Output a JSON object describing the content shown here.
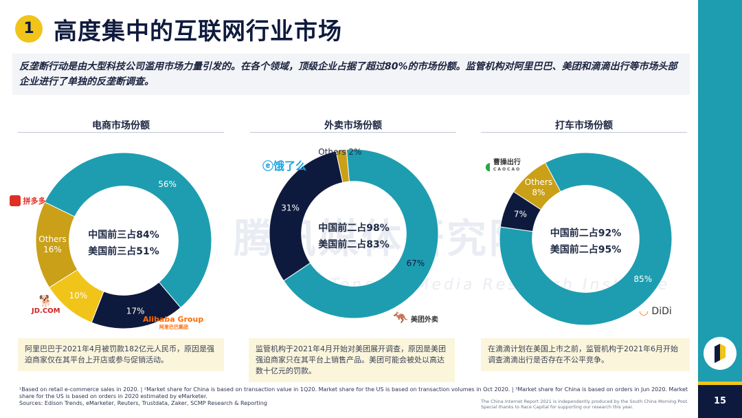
{
  "header": {
    "badge": "1",
    "title": "高度集中的互联网行业市场"
  },
  "intro": "反垄断行动是由大型科技公司滥用市场力量引发的。在各个领域，顶级企业占据了超过80%的市场份额。监管机构对阿里巴巴、美团和滴滴出行等市场头部企业进行了单独的反垄断调查。",
  "watermark": {
    "cn": "腾讯媒体研究院",
    "en": "Tencent Media Research Institute"
  },
  "colors": {
    "teal": "#1e9db0",
    "navy": "#0e1a3d",
    "gold": "#f0c419",
    "olive": "#c9a018"
  },
  "charts": [
    {
      "heading": "电商市场份额",
      "center": [
        "中国前三占84%",
        "美国前三占51%"
      ],
      "logos": {
        "top": "拼多多",
        "bottom_left": "JD.COM",
        "bottom_right": "Alibaba Group",
        "bottom_right_sub": "阿里巴巴集团"
      },
      "note": "阿里巴巴于2021年4月被罚款182亿元人民币，原因是强迫商家仅在其平台上开店或参与促销活动。"
    },
    {
      "heading": "外卖市场份额",
      "center": [
        "中国前二占98%",
        "美国前二占83%"
      ],
      "logos": {
        "top": "饿了么",
        "bottom_right": "美团外卖"
      },
      "note": "监管机构于2021年4月开始对美团展开调查，原因是美团强迫商家只在其平台上销售产品。美团可能会被处以高达数十亿元的罚款。"
    },
    {
      "heading": "打车市场份额",
      "center": [
        "中国前二占92%",
        "美国前二占95%"
      ],
      "logos": {
        "top": "曹操出行",
        "top_sub": "CAOCAO",
        "bottom_right": "DiDi"
      },
      "note": "在滴滴计划在美国上市之前，监管机构于2021年6月开始调查滴滴出行是否存在不公平竞争。"
    }
  ],
  "chart_data": [
    {
      "type": "pie",
      "title": "电商市场份额",
      "series": [
        {
          "name": "Alibaba",
          "value": 56,
          "label": "56%"
        },
        {
          "name": "JD.COM",
          "value": 17,
          "label": "17%"
        },
        {
          "name": "拼多多",
          "value": 10,
          "label": "10%"
        },
        {
          "name": "Others",
          "value": 16,
          "label": "Others\n16%"
        }
      ]
    },
    {
      "type": "pie",
      "title": "外卖市场份额",
      "series": [
        {
          "name": "美团外卖",
          "value": 67,
          "label": "67%"
        },
        {
          "name": "饿了么",
          "value": 31,
          "label": "31%"
        },
        {
          "name": "Others",
          "value": 2,
          "label": "Others 2%"
        }
      ]
    },
    {
      "type": "pie",
      "title": "打车市场份额",
      "series": [
        {
          "name": "DiDi",
          "value": 85,
          "label": "85%"
        },
        {
          "name": "曹操出行",
          "value": 7,
          "label": "7%"
        },
        {
          "name": "Others",
          "value": 8,
          "label": "Others\n8%"
        }
      ]
    }
  ],
  "footnote": "¹Based on retail e-commerce sales in 2020. | ²Market share for China is based on transaction value in 1Q20. Market share for the US is based on transaction volumes in Oct 2020. | ³Market share for China is based on orders in Jun 2020. Market share for the US is based on orders in 2020 estimated by eMarketer.",
  "sources": "Sources: Edison Trends, eMarketer, Reuters, Trustdata, Zaker, SCMP Research & Reporting",
  "credit": "The China Internet Report 2021 is independently produced by the South China Morning Post. Special thanks to Race Capital for supporting our research this year.",
  "page_number": "15"
}
